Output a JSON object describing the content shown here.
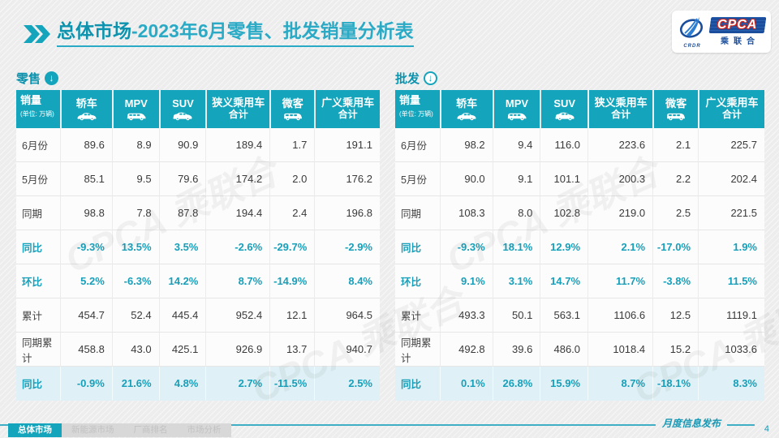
{
  "header": {
    "title_market": "总体市场",
    "title_rest": "-2023年6月零售、批发销量分析表",
    "logo": {
      "crdr": "CRDR",
      "acronym": "CPCA",
      "org": "乘联合"
    }
  },
  "colors": {
    "teal": "#14A5BC",
    "teal_dark": "#0D93AE",
    "teal_light": "#2BAAC6",
    "teal_text": "#189FB9",
    "highlight_row_bg": "#DFF1F6",
    "logo_navy": "#1A4E9C",
    "logo_red": "#CE2620"
  },
  "tables": {
    "retail": {
      "label": "零售",
      "columns": [
        {
          "label": "销量",
          "sub": "(单位: 万辆)",
          "icon": null
        },
        {
          "label": "轿车",
          "icon": "sedan-icon"
        },
        {
          "label": "MPV",
          "icon": "mpv-icon"
        },
        {
          "label": "SUV",
          "icon": "suv-icon"
        },
        {
          "label": "狭义乘用车",
          "label2": "合计",
          "icon": null
        },
        {
          "label": "微客",
          "icon": "microvan-icon"
        },
        {
          "label": "广义乘用车",
          "label2": "合计",
          "icon": null
        }
      ],
      "rows": [
        {
          "label": "6月份",
          "style": "normal",
          "values": [
            "89.6",
            "8.9",
            "90.9",
            "189.4",
            "1.7",
            "191.1"
          ]
        },
        {
          "label": "5月份",
          "style": "normal",
          "values": [
            "85.1",
            "9.5",
            "79.6",
            "174.2",
            "2.0",
            "176.2"
          ]
        },
        {
          "label": "同期",
          "style": "normal",
          "values": [
            "98.8",
            "7.8",
            "87.8",
            "194.4",
            "2.4",
            "196.8"
          ]
        },
        {
          "label": "同比",
          "style": "teal",
          "values": [
            "-9.3%",
            "13.5%",
            "3.5%",
            "-2.6%",
            "-29.7%",
            "-2.9%"
          ]
        },
        {
          "label": "环比",
          "style": "teal",
          "values": [
            "5.2%",
            "-6.3%",
            "14.2%",
            "8.7%",
            "-14.9%",
            "8.4%"
          ]
        },
        {
          "label": "累计",
          "style": "normal",
          "values": [
            "454.7",
            "52.4",
            "445.4",
            "952.4",
            "12.1",
            "964.5"
          ]
        },
        {
          "label": "同期累计",
          "style": "normal",
          "values": [
            "458.8",
            "43.0",
            "425.1",
            "926.9",
            "13.7",
            "940.7"
          ]
        },
        {
          "label": "同比",
          "style": "teal-highlight",
          "values": [
            "-0.9%",
            "21.6%",
            "4.8%",
            "2.7%",
            "-11.5%",
            "2.5%"
          ]
        }
      ]
    },
    "wholesale": {
      "label": "批发",
      "columns": [
        {
          "label": "销量",
          "sub": "(单位: 万辆)",
          "icon": null
        },
        {
          "label": "轿车",
          "icon": "sedan-icon"
        },
        {
          "label": "MPV",
          "icon": "mpv-icon"
        },
        {
          "label": "SUV",
          "icon": "suv-icon"
        },
        {
          "label": "狭义乘用车",
          "label2": "合计",
          "icon": null
        },
        {
          "label": "微客",
          "icon": "microvan-icon"
        },
        {
          "label": "广义乘用车",
          "label2": "合计",
          "icon": null
        }
      ],
      "rows": [
        {
          "label": "6月份",
          "style": "normal",
          "values": [
            "98.2",
            "9.4",
            "116.0",
            "223.6",
            "2.1",
            "225.7"
          ]
        },
        {
          "label": "5月份",
          "style": "normal",
          "values": [
            "90.0",
            "9.1",
            "101.1",
            "200.3",
            "2.2",
            "202.4"
          ]
        },
        {
          "label": "同期",
          "style": "normal",
          "values": [
            "108.3",
            "8.0",
            "102.8",
            "219.0",
            "2.5",
            "221.5"
          ]
        },
        {
          "label": "同比",
          "style": "teal",
          "values": [
            "-9.3%",
            "18.1%",
            "12.9%",
            "2.1%",
            "-17.0%",
            "1.9%"
          ]
        },
        {
          "label": "环比",
          "style": "teal",
          "values": [
            "9.1%",
            "3.1%",
            "14.7%",
            "11.7%",
            "-3.8%",
            "11.5%"
          ]
        },
        {
          "label": "累计",
          "style": "normal",
          "values": [
            "493.3",
            "50.1",
            "563.1",
            "1106.6",
            "12.5",
            "1119.1"
          ]
        },
        {
          "label": "同期累计",
          "style": "normal",
          "values": [
            "492.8",
            "39.6",
            "486.0",
            "1018.4",
            "15.2",
            "1033.6"
          ]
        },
        {
          "label": "同比",
          "style": "teal-highlight",
          "values": [
            "0.1%",
            "26.8%",
            "15.9%",
            "8.7%",
            "-18.1%",
            "8.3%"
          ]
        }
      ]
    }
  },
  "watermark_text": "CPCA 乘联合",
  "footer": {
    "tabs": [
      {
        "label": "总体市场",
        "active": true
      },
      {
        "label": "新能源市场",
        "active": false
      },
      {
        "label": "厂商排名",
        "active": false
      },
      {
        "label": "市场分析",
        "active": false
      }
    ],
    "publication": "月度信息发布",
    "page": "4"
  }
}
